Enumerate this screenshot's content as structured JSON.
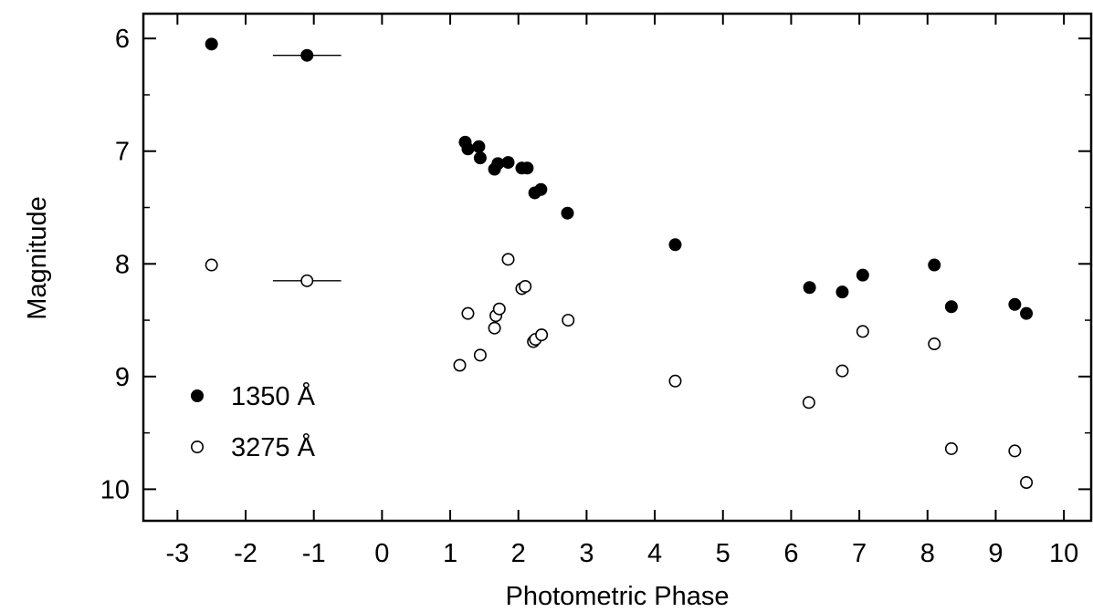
{
  "chart_data": {
    "type": "scatter",
    "title": "",
    "xlabel": "Photometric Phase",
    "ylabel": "Magnitude",
    "xlim": [
      -3.5,
      10.4
    ],
    "ylim": [
      10.28,
      5.78
    ],
    "y_inverted": true,
    "x_ticks": [
      -3,
      -2,
      -1,
      0,
      1,
      2,
      3,
      4,
      5,
      6,
      7,
      8,
      9,
      10
    ],
    "x_tick_labels": [
      "-3",
      "-2",
      "-1",
      "0",
      "1",
      "2",
      "3",
      "4",
      "5",
      "6",
      "7",
      "8",
      "9",
      "10"
    ],
    "y_ticks": [
      6,
      7,
      8,
      9,
      10
    ],
    "y_tick_labels": [
      "6",
      "7",
      "8",
      "9",
      "10"
    ],
    "y_minor_ticks": [
      6.5,
      7.5,
      8.5,
      9.5
    ],
    "grid": false,
    "legend_position": "bottom-left",
    "series": [
      {
        "name": "1350 Å",
        "marker": "filled-circle",
        "color": "#000000",
        "points": [
          {
            "x": -2.5,
            "y": 6.05
          },
          {
            "x": -1.1,
            "y": 6.15,
            "xerr": 0.5
          },
          {
            "x": 1.22,
            "y": 6.92
          },
          {
            "x": 1.26,
            "y": 6.98
          },
          {
            "x": 1.42,
            "y": 6.96
          },
          {
            "x": 1.44,
            "y": 7.06
          },
          {
            "x": 1.65,
            "y": 7.16
          },
          {
            "x": 1.7,
            "y": 7.11
          },
          {
            "x": 1.85,
            "y": 7.1
          },
          {
            "x": 2.05,
            "y": 7.15
          },
          {
            "x": 2.13,
            "y": 7.15
          },
          {
            "x": 2.24,
            "y": 7.37
          },
          {
            "x": 2.33,
            "y": 7.34
          },
          {
            "x": 2.72,
            "y": 7.55
          },
          {
            "x": 4.3,
            "y": 7.83
          },
          {
            "x": 6.27,
            "y": 8.21
          },
          {
            "x": 6.75,
            "y": 8.25
          },
          {
            "x": 7.05,
            "y": 8.1
          },
          {
            "x": 8.1,
            "y": 8.01
          },
          {
            "x": 8.35,
            "y": 8.38
          },
          {
            "x": 9.28,
            "y": 8.36
          },
          {
            "x": 9.45,
            "y": 8.44
          }
        ]
      },
      {
        "name": "3275 Å",
        "marker": "open-circle",
        "color": "#000000",
        "points": [
          {
            "x": -2.5,
            "y": 8.01
          },
          {
            "x": -1.1,
            "y": 8.15,
            "xerr": 0.5
          },
          {
            "x": 1.14,
            "y": 8.9
          },
          {
            "x": 1.26,
            "y": 8.44
          },
          {
            "x": 1.44,
            "y": 8.81
          },
          {
            "x": 1.65,
            "y": 8.57
          },
          {
            "x": 1.67,
            "y": 8.46
          },
          {
            "x": 1.72,
            "y": 8.4
          },
          {
            "x": 1.85,
            "y": 7.96
          },
          {
            "x": 2.05,
            "y": 8.22
          },
          {
            "x": 2.1,
            "y": 8.2
          },
          {
            "x": 2.22,
            "y": 8.69
          },
          {
            "x": 2.25,
            "y": 8.67
          },
          {
            "x": 2.34,
            "y": 8.63
          },
          {
            "x": 2.73,
            "y": 8.5
          },
          {
            "x": 4.3,
            "y": 9.04
          },
          {
            "x": 6.26,
            "y": 9.23
          },
          {
            "x": 6.75,
            "y": 8.95
          },
          {
            "x": 7.05,
            "y": 8.6
          },
          {
            "x": 8.1,
            "y": 8.71
          },
          {
            "x": 8.35,
            "y": 9.64
          },
          {
            "x": 9.28,
            "y": 9.66
          },
          {
            "x": 9.45,
            "y": 9.94
          }
        ]
      }
    ]
  }
}
